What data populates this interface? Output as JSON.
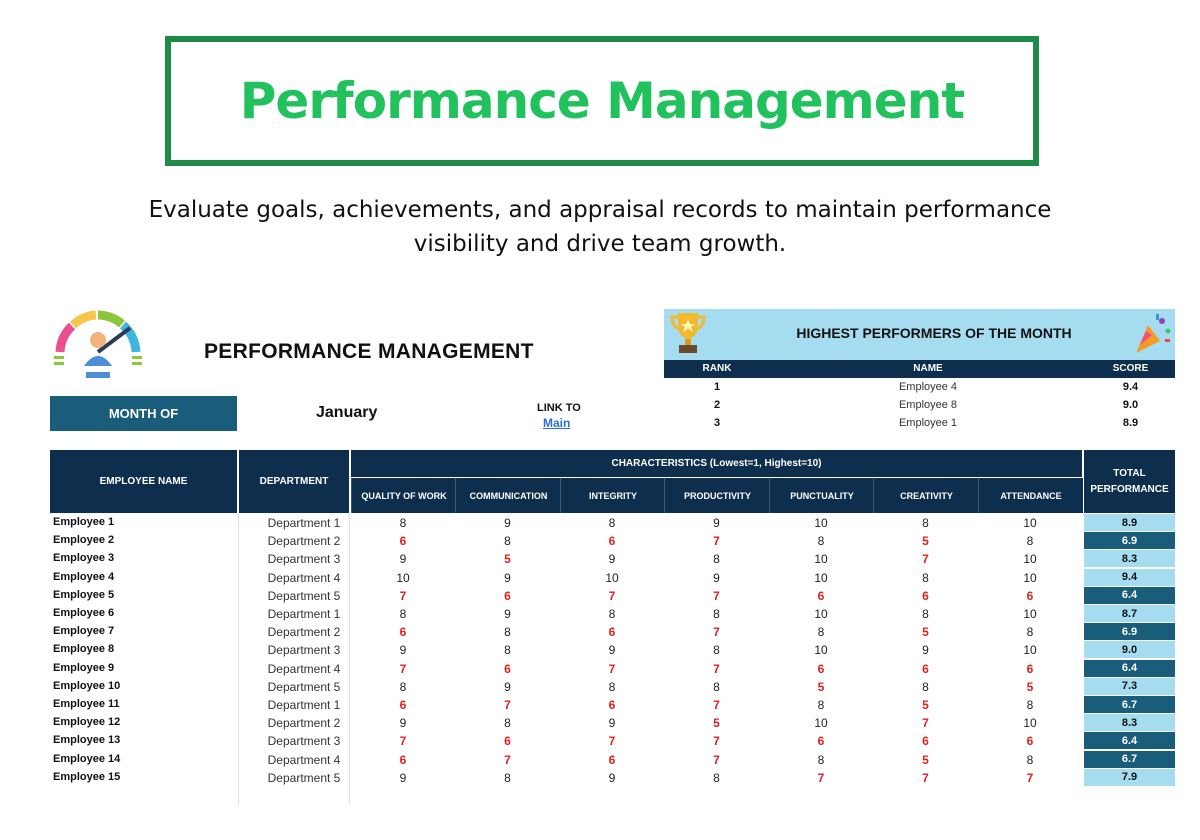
{
  "banner": {
    "title": "Performance Management"
  },
  "subtitle": "Evaluate goals, achievements, and appraisal records to maintain performance visibility and drive team growth.",
  "sheet": {
    "title": "PERFORMANCE MANAGEMENT",
    "month_label": "MONTH OF",
    "month_value": "January",
    "link_label": "LINK TO",
    "link_text": "Main"
  },
  "highest": {
    "title": "HIGHEST PERFORMERS OF THE MONTH",
    "columns": {
      "rank": "RANK",
      "name": "NAME",
      "score": "SCORE"
    },
    "rows": [
      {
        "rank": "1",
        "name": "Employee 4",
        "score": "9.4"
      },
      {
        "rank": "2",
        "name": "Employee 8",
        "score": "9.0"
      },
      {
        "rank": "3",
        "name": "Employee 1",
        "score": "8.9"
      }
    ]
  },
  "table": {
    "col_employee": "EMPLOYEE NAME",
    "col_department": "DEPARTMENT",
    "col_characteristics": "CHARACTERISTICS (Lowest=1, Highest=10)",
    "col_total": "TOTAL PERFORMANCE",
    "characteristics": [
      "QUALITY OF WORK",
      "COMMUNICATION",
      "INTEGRITY",
      "PRODUCTIVITY",
      "PUNCTUALITY",
      "CREATIVITY",
      "ATTENDANCE"
    ],
    "rows": [
      {
        "name": "Employee 1",
        "dept": "Department 1",
        "scores": [
          8,
          9,
          8,
          9,
          10,
          8,
          10
        ],
        "total": "8.9"
      },
      {
        "name": "Employee 2",
        "dept": "Department 2",
        "scores": [
          6,
          8,
          6,
          7,
          8,
          5,
          8
        ],
        "total": "6.9"
      },
      {
        "name": "Employee 3",
        "dept": "Department 3",
        "scores": [
          9,
          5,
          9,
          8,
          10,
          7,
          10
        ],
        "total": "8.3"
      },
      {
        "name": "Employee 4",
        "dept": "Department 4",
        "scores": [
          10,
          9,
          10,
          9,
          10,
          8,
          10
        ],
        "total": "9.4"
      },
      {
        "name": "Employee 5",
        "dept": "Department 5",
        "scores": [
          7,
          6,
          7,
          7,
          6,
          6,
          6
        ],
        "total": "6.4"
      },
      {
        "name": "Employee 6",
        "dept": "Department 1",
        "scores": [
          8,
          9,
          8,
          8,
          10,
          8,
          10
        ],
        "total": "8.7"
      },
      {
        "name": "Employee 7",
        "dept": "Department 2",
        "scores": [
          6,
          8,
          6,
          7,
          8,
          5,
          8
        ],
        "total": "6.9"
      },
      {
        "name": "Employee 8",
        "dept": "Department 3",
        "scores": [
          9,
          8,
          9,
          8,
          10,
          9,
          10
        ],
        "total": "9.0"
      },
      {
        "name": "Employee 9",
        "dept": "Department 4",
        "scores": [
          7,
          6,
          7,
          7,
          6,
          6,
          6
        ],
        "total": "6.4"
      },
      {
        "name": "Employee 10",
        "dept": "Department 5",
        "scores": [
          8,
          9,
          8,
          8,
          5,
          8,
          5
        ],
        "total": "7.3"
      },
      {
        "name": "Employee 11",
        "dept": "Department 1",
        "scores": [
          6,
          7,
          6,
          7,
          8,
          5,
          8
        ],
        "total": "6.7"
      },
      {
        "name": "Employee 12",
        "dept": "Department 2",
        "scores": [
          9,
          8,
          9,
          5,
          10,
          7,
          10
        ],
        "total": "8.3"
      },
      {
        "name": "Employee 13",
        "dept": "Department 3",
        "scores": [
          7,
          6,
          7,
          7,
          6,
          6,
          6
        ],
        "total": "6.4"
      },
      {
        "name": "Employee 14",
        "dept": "Department 4",
        "scores": [
          6,
          7,
          6,
          7,
          8,
          5,
          8
        ],
        "total": "6.7"
      },
      {
        "name": "Employee 15",
        "dept": "Department 5",
        "scores": [
          9,
          8,
          9,
          8,
          7,
          7,
          7
        ],
        "total": "7.9"
      }
    ]
  },
  "colors": {
    "banner_border": "#1e8a48",
    "banner_text": "#21c15d",
    "header_dark": "#0e2e4d",
    "accent_blue": "#1a5d7a",
    "light_blue": "#a6dcf0",
    "low_score_red": "#e02020"
  },
  "icons": {
    "gauge": "performance-gauge-icon",
    "trophy": "trophy-icon",
    "party": "party-popper-icon"
  }
}
